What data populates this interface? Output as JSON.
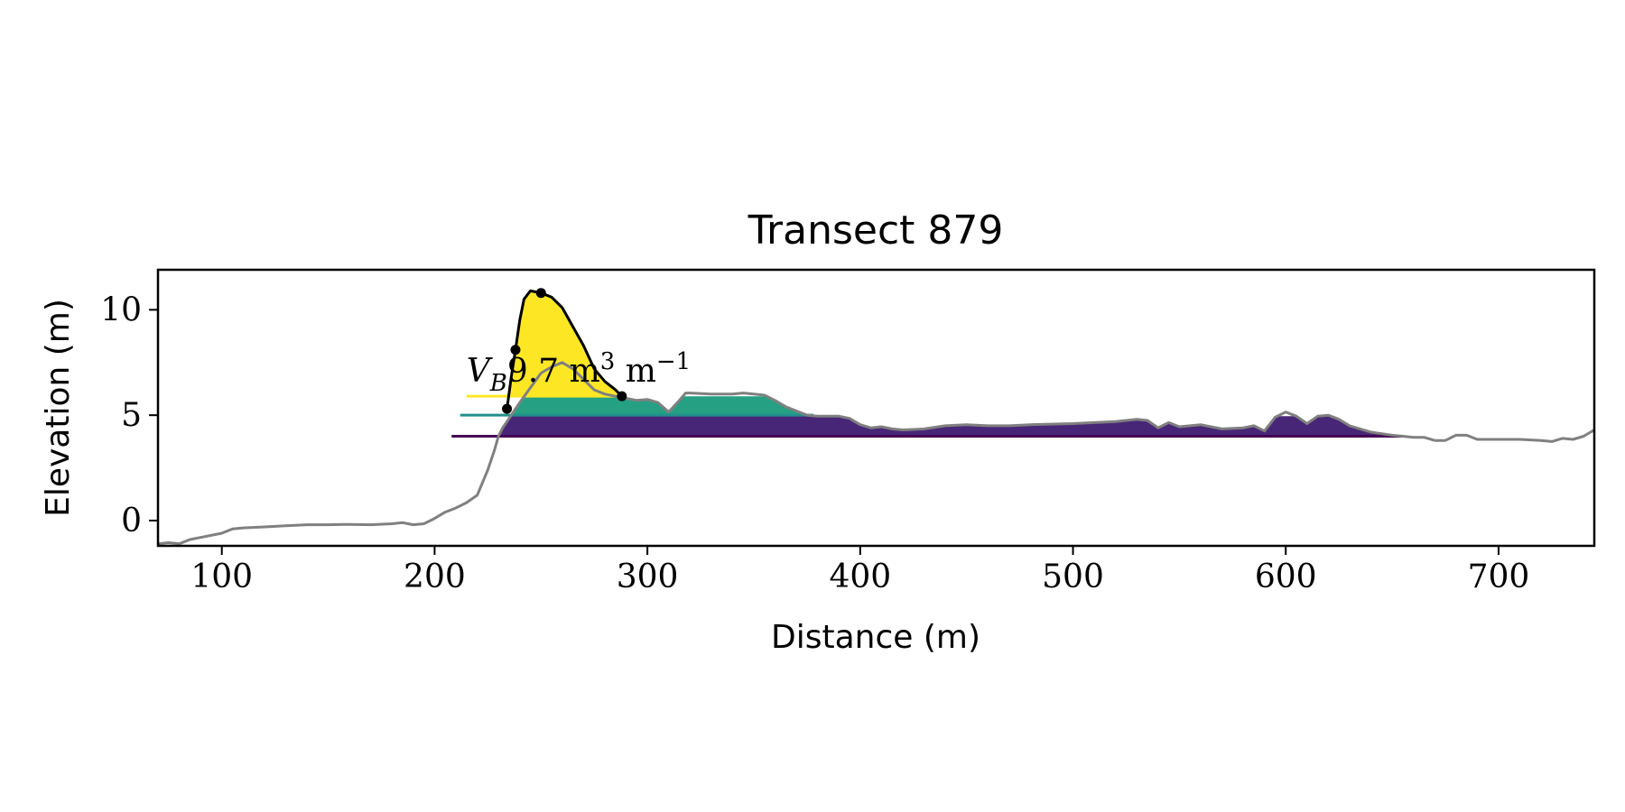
{
  "chart_data": {
    "type": "area",
    "title": "Transect 879",
    "xlabel": "Distance (m)",
    "ylabel": "Elevation (m)",
    "xlim": [
      70,
      745
    ],
    "ylim": [
      -1.2,
      11.9
    ],
    "xticks": [
      100,
      200,
      300,
      400,
      500,
      600,
      700
    ],
    "yticks": [
      0,
      5,
      10
    ],
    "grid": false,
    "legend": "none",
    "annotation": {
      "symbol": "V",
      "subscript": "B",
      "text": "9.7 m",
      "unit_sup": "3",
      "unit_tail": " m",
      "unit_tail_sup": "−1",
      "x": 215,
      "y": 6.6
    },
    "profile": {
      "color": "#808080",
      "x": [
        70,
        75,
        80,
        85,
        90,
        100,
        105,
        110,
        120,
        130,
        140,
        150,
        160,
        170,
        180,
        185,
        190,
        195,
        200,
        205,
        210,
        215,
        220,
        225,
        228,
        230,
        232,
        234,
        236,
        240,
        245,
        250,
        255,
        260,
        265,
        270,
        275,
        280,
        285,
        290,
        295,
        300,
        305,
        310,
        315,
        318,
        320,
        330,
        340,
        345,
        350,
        355,
        360,
        365,
        370,
        375,
        380,
        390,
        395,
        400,
        405,
        410,
        415,
        420,
        430,
        440,
        450,
        460,
        470,
        480,
        500,
        520,
        525,
        530,
        535,
        540,
        545,
        550,
        560,
        570,
        580,
        585,
        590,
        595,
        600,
        605,
        610,
        615,
        620,
        625,
        630,
        640,
        650,
        655,
        660,
        665,
        670,
        675,
        680,
        685,
        690,
        700,
        710,
        720,
        725,
        730,
        735,
        740,
        745
      ],
      "y": [
        -1.1,
        -1.05,
        -1.1,
        -0.9,
        -0.8,
        -0.6,
        -0.4,
        -0.35,
        -0.3,
        -0.25,
        -0.2,
        -0.2,
        -0.18,
        -0.2,
        -0.15,
        -0.1,
        -0.2,
        -0.15,
        0.1,
        0.4,
        0.6,
        0.85,
        1.2,
        2.4,
        3.3,
        4.0,
        4.4,
        4.7,
        5.0,
        5.6,
        6.3,
        7.0,
        7.3,
        7.5,
        7.2,
        6.7,
        6.2,
        6.0,
        5.9,
        5.8,
        5.7,
        5.75,
        5.6,
        5.15,
        5.7,
        6.05,
        6.05,
        6.0,
        6.0,
        6.05,
        6.0,
        5.95,
        5.7,
        5.4,
        5.2,
        5.0,
        4.95,
        4.95,
        4.85,
        4.55,
        4.4,
        4.45,
        4.35,
        4.3,
        4.35,
        4.5,
        4.55,
        4.5,
        4.5,
        4.55,
        4.6,
        4.7,
        4.75,
        4.8,
        4.75,
        4.4,
        4.65,
        4.45,
        4.55,
        4.35,
        4.4,
        4.5,
        4.25,
        4.9,
        5.15,
        4.95,
        4.6,
        4.95,
        5.0,
        4.8,
        4.5,
        4.2,
        4.05,
        4.0,
        3.95,
        3.95,
        3.8,
        3.8,
        4.05,
        4.05,
        3.85,
        3.85,
        3.85,
        3.8,
        3.75,
        3.9,
        3.85,
        4.0,
        4.3
      ]
    },
    "dune_crest": {
      "color": "#000000",
      "x": [
        234,
        236,
        238,
        240,
        242,
        245,
        250,
        255,
        260,
        265,
        270,
        275,
        280,
        285,
        288
      ],
      "y": [
        5.3,
        6.8,
        8.1,
        9.5,
        10.5,
        10.9,
        10.8,
        10.6,
        10.1,
        9.2,
        8.3,
        7.2,
        6.6,
        6.2,
        5.9
      ]
    },
    "markers": {
      "color": "#000000",
      "x": [
        234,
        238,
        250,
        288
      ],
      "y": [
        5.3,
        8.1,
        10.8,
        5.9
      ]
    },
    "level_lines": [
      {
        "color": "#440154",
        "level": 4.0,
        "x_start": 208,
        "x_end": 655
      },
      {
        "color": "#21918c",
        "level": 5.0,
        "x_start": 212,
        "x_end": 378
      },
      {
        "color": "#fde725",
        "level": 5.9,
        "x_start": 215,
        "x_end": 288
      }
    ],
    "fills": [
      {
        "color": "#482677",
        "x_start": 228,
        "x_end": 655,
        "base": 4.0,
        "top": 4.95
      },
      {
        "color": "#25a083",
        "x_start": 232,
        "x_end": 378,
        "base": 4.95,
        "top": 5.9
      },
      {
        "color": "#fde725",
        "x_start": 234,
        "x_end": 288,
        "base": 5.9,
        "top": "dune_crest"
      }
    ]
  }
}
